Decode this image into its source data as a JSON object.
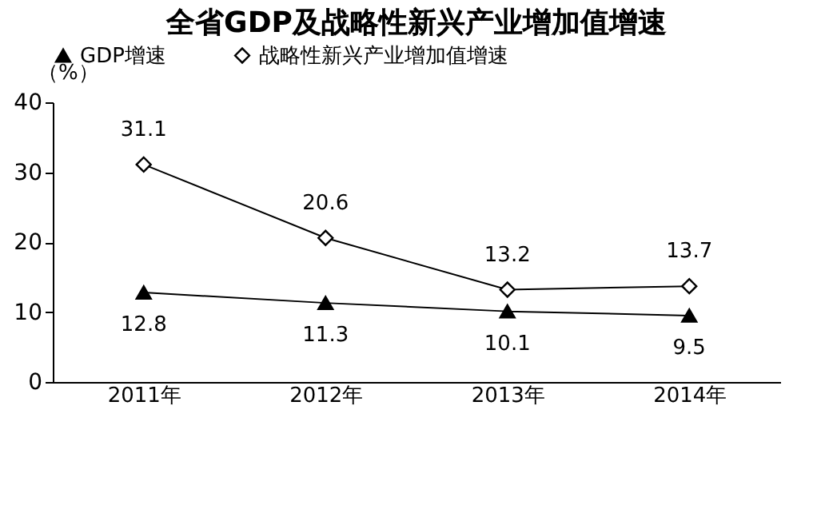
{
  "chart_data": {
    "type": "line",
    "title": "全省GDP及战略性新兴产业增加值增速",
    "ylabel": "（%）",
    "categories": [
      "2011年",
      "2012年",
      "2013年",
      "2014年"
    ],
    "series": [
      {
        "name": "GDP增速",
        "color": "#000000",
        "marker": "triangle",
        "values": [
          12.8,
          11.3,
          10.1,
          9.5
        ]
      },
      {
        "name": "战略性新兴产业增加值增速",
        "color": "#000000",
        "marker": "diamond",
        "values": [
          31.1,
          20.6,
          13.2,
          13.7
        ]
      }
    ],
    "ylim": [
      0,
      40
    ],
    "yticks": [
      0,
      10,
      20,
      30,
      40
    ],
    "grid": false,
    "legend": "top",
    "data_labels": true,
    "line_style": "solid"
  }
}
